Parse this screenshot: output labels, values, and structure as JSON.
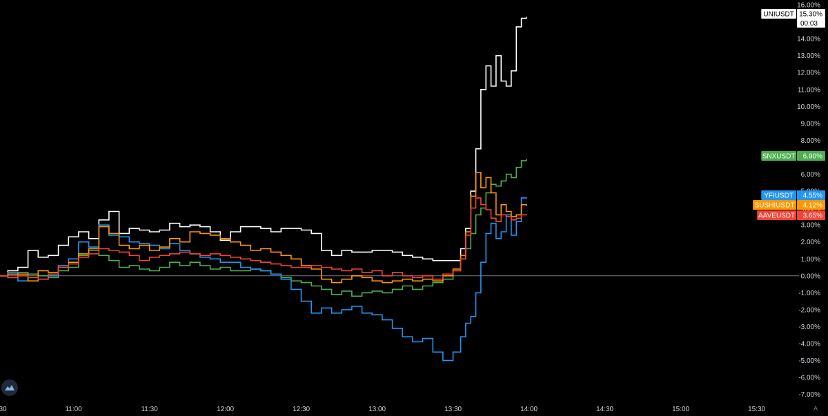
{
  "chart_data": {
    "type": "line",
    "x_ticks": [
      "30",
      "11:00",
      "11:30",
      "12:00",
      "12:30",
      "13:00",
      "13:30",
      "14:00",
      "14:30",
      "15:00",
      "15:30"
    ],
    "y_ticks": [
      "16.00%",
      "15.00%",
      "14.00%",
      "13.00%",
      "12.00%",
      "11.00%",
      "10.00%",
      "9.00%",
      "8.00%",
      "7.00%",
      "6.00%",
      "5.00%",
      "4.00%",
      "3.00%",
      "2.00%",
      "1.00%",
      "0.00%",
      "-1.00%",
      "-2.00%",
      "-3.00%",
      "-4.00%",
      "-5.00%",
      "-6.00%",
      "-7.00%"
    ],
    "ylim": [
      -7.3,
      16
    ],
    "xlim": [
      "10:30",
      "15:50"
    ],
    "grid": false,
    "baseline": 0,
    "countdown": "00:03",
    "series": [
      {
        "name": "UNIUSDT",
        "color": "#ffffff",
        "last_label": "15.30%",
        "last": 15.3,
        "x": [
          "10:30",
          "10:34",
          "10:38",
          "10:42",
          "10:46",
          "10:50",
          "10:54",
          "10:58",
          "11:02",
          "11:06",
          "11:10",
          "11:14",
          "11:18",
          "11:22",
          "11:26",
          "11:30",
          "11:34",
          "11:38",
          "11:42",
          "11:46",
          "11:50",
          "11:54",
          "11:58",
          "12:02",
          "12:06",
          "12:10",
          "12:14",
          "12:18",
          "12:22",
          "12:26",
          "12:30",
          "12:34",
          "12:38",
          "12:42",
          "12:46",
          "12:50",
          "12:54",
          "12:58",
          "13:02",
          "13:06",
          "13:10",
          "13:14",
          "13:18",
          "13:22",
          "13:26",
          "13:30",
          "13:33",
          "13:35",
          "13:37",
          "13:39",
          "13:41",
          "13:43",
          "13:45",
          "13:47",
          "13:49",
          "13:51",
          "13:53",
          "13:55",
          "13:57",
          "13:59"
        ],
        "values": [
          0,
          0.3,
          0.5,
          1.5,
          1.1,
          1.2,
          1.8,
          2.3,
          2.6,
          2.2,
          3.3,
          3.8,
          2.5,
          2.8,
          2.7,
          2.6,
          2.7,
          3.1,
          2.9,
          3.0,
          2.9,
          2.6,
          2.1,
          2.6,
          2.9,
          2.9,
          2.8,
          2.6,
          2.8,
          2.8,
          2.7,
          2.5,
          1.5,
          1.2,
          1.5,
          1.4,
          1.4,
          1.5,
          1.5,
          1.4,
          1.2,
          1.1,
          1.0,
          0.9,
          0.9,
          0.9,
          1.6,
          2.8,
          5.0,
          7.5,
          11.0,
          12.4,
          11.2,
          13.0,
          11.5,
          11.2,
          12.1,
          14.7,
          15.2,
          15.3
        ]
      },
      {
        "name": "SNXUSDT",
        "color": "#4caf50",
        "last_label": "6.90%",
        "last": 6.9,
        "x": [
          "10:30",
          "10:34",
          "10:38",
          "10:42",
          "10:46",
          "10:50",
          "10:54",
          "10:58",
          "11:02",
          "11:06",
          "11:10",
          "11:14",
          "11:18",
          "11:22",
          "11:26",
          "11:30",
          "11:34",
          "11:38",
          "11:42",
          "11:46",
          "11:50",
          "11:54",
          "11:58",
          "12:02",
          "12:06",
          "12:10",
          "12:14",
          "12:18",
          "12:22",
          "12:26",
          "12:30",
          "12:34",
          "12:38",
          "12:42",
          "12:46",
          "12:50",
          "12:54",
          "12:58",
          "13:02",
          "13:06",
          "13:10",
          "13:14",
          "13:18",
          "13:22",
          "13:26",
          "13:30",
          "13:33",
          "13:35",
          "13:37",
          "13:39",
          "13:41",
          "13:43",
          "13:45",
          "13:47",
          "13:49",
          "13:51",
          "13:53",
          "13:55",
          "13:57",
          "13:59"
        ],
        "values": [
          0,
          -0.1,
          0.2,
          0.1,
          0.0,
          -0.1,
          0.3,
          0.5,
          1.2,
          1.5,
          1.2,
          0.9,
          0.5,
          0.6,
          0.4,
          0.3,
          0.5,
          0.8,
          0.6,
          0.8,
          0.6,
          0.4,
          0.5,
          0.3,
          0.3,
          0.4,
          0.3,
          0.1,
          -0.1,
          -0.3,
          -0.4,
          -0.6,
          -0.8,
          -1.1,
          -0.9,
          -1.2,
          -1.0,
          -0.9,
          -1.0,
          -0.8,
          -0.6,
          -0.8,
          -0.6,
          -0.4,
          -0.2,
          0.3,
          1.0,
          1.6,
          2.5,
          3.6,
          4.0,
          4.9,
          5.4,
          5.3,
          5.6,
          6.0,
          5.8,
          6.4,
          6.8,
          6.9
        ]
      },
      {
        "name": "YFIUSDT",
        "color": "#2196f3",
        "last_label": "4.55%",
        "last": 4.55,
        "x": [
          "10:30",
          "10:34",
          "10:38",
          "10:42",
          "10:46",
          "10:50",
          "10:54",
          "10:58",
          "11:02",
          "11:06",
          "11:10",
          "11:14",
          "11:18",
          "11:22",
          "11:26",
          "11:30",
          "11:34",
          "11:38",
          "11:42",
          "11:46",
          "11:50",
          "11:54",
          "11:58",
          "12:02",
          "12:06",
          "12:10",
          "12:14",
          "12:18",
          "12:22",
          "12:26",
          "12:30",
          "12:34",
          "12:38",
          "12:42",
          "12:46",
          "12:50",
          "12:54",
          "12:58",
          "13:02",
          "13:06",
          "13:10",
          "13:14",
          "13:18",
          "13:22",
          "13:26",
          "13:30",
          "13:33",
          "13:35",
          "13:37",
          "13:39",
          "13:41",
          "13:43",
          "13:45",
          "13:47",
          "13:49",
          "13:51",
          "13:53",
          "13:55",
          "13:57",
          "13:59"
        ],
        "values": [
          0,
          0.2,
          -0.3,
          -0.1,
          -0.2,
          0.0,
          0.6,
          1.0,
          2.0,
          1.7,
          3.0,
          2.4,
          2.3,
          2.0,
          1.9,
          1.8,
          1.6,
          1.9,
          1.5,
          1.3,
          1.1,
          1.0,
          0.8,
          0.8,
          0.5,
          0.4,
          0.3,
          0.1,
          -0.2,
          -0.8,
          -1.5,
          -2.2,
          -1.9,
          -2.2,
          -2.0,
          -1.8,
          -2.2,
          -2.3,
          -2.6,
          -3.1,
          -3.6,
          -3.9,
          -3.7,
          -4.5,
          -5.0,
          -4.5,
          -3.6,
          -2.8,
          -2.4,
          -1.0,
          0.8,
          2.5,
          3.1,
          2.2,
          2.6,
          3.6,
          2.4,
          3.2,
          4.6,
          4.55
        ]
      },
      {
        "name": "SUSHIUSDT",
        "color": "#ff9800",
        "last_label": "4.12%",
        "last": 4.12,
        "x": [
          "10:30",
          "10:34",
          "10:38",
          "10:42",
          "10:46",
          "10:50",
          "10:54",
          "10:58",
          "11:02",
          "11:06",
          "11:10",
          "11:14",
          "11:18",
          "11:22",
          "11:26",
          "11:30",
          "11:34",
          "11:38",
          "11:42",
          "11:46",
          "11:50",
          "11:54",
          "11:58",
          "12:02",
          "12:06",
          "12:10",
          "12:14",
          "12:18",
          "12:22",
          "12:26",
          "12:30",
          "12:34",
          "12:38",
          "12:42",
          "12:46",
          "12:50",
          "12:54",
          "12:58",
          "13:02",
          "13:06",
          "13:10",
          "13:14",
          "13:18",
          "13:22",
          "13:26",
          "13:30",
          "13:33",
          "13:35",
          "13:37",
          "13:39",
          "13:41",
          "13:43",
          "13:45",
          "13:47",
          "13:49",
          "13:51",
          "13:53",
          "13:55",
          "13:57",
          "13:59"
        ],
        "values": [
          0,
          0.1,
          0.1,
          -0.3,
          0.3,
          0.2,
          0.5,
          0.8,
          1.3,
          1.6,
          2.9,
          2.5,
          1.8,
          1.6,
          1.8,
          1.5,
          1.7,
          2.2,
          2.0,
          2.6,
          2.5,
          2.4,
          2.2,
          2.0,
          1.8,
          1.5,
          1.6,
          1.4,
          1.2,
          1.0,
          0.6,
          0.4,
          -0.2,
          -0.4,
          -0.2,
          0.0,
          -0.1,
          -0.3,
          -0.4,
          -0.3,
          -0.2,
          -0.3,
          -0.2,
          -0.3,
          0.0,
          0.4,
          1.2,
          2.6,
          4.7,
          6.1,
          5.2,
          5.8,
          4.9,
          3.6,
          4.2,
          3.8,
          3.5,
          3.6,
          4.2,
          4.12
        ]
      },
      {
        "name": "AAVEUSDT",
        "color": "#f44336",
        "last_label": "3.65%",
        "last": 3.65,
        "x": [
          "10:30",
          "10:34",
          "10:38",
          "10:42",
          "10:46",
          "10:50",
          "10:54",
          "10:58",
          "11:02",
          "11:06",
          "11:10",
          "11:14",
          "11:18",
          "11:22",
          "11:26",
          "11:30",
          "11:34",
          "11:38",
          "11:42",
          "11:46",
          "11:50",
          "11:54",
          "11:58",
          "12:02",
          "12:06",
          "12:10",
          "12:14",
          "12:18",
          "12:22",
          "12:26",
          "12:30",
          "12:34",
          "12:38",
          "12:42",
          "12:46",
          "12:50",
          "12:54",
          "12:58",
          "13:02",
          "13:06",
          "13:10",
          "13:14",
          "13:18",
          "13:22",
          "13:26",
          "13:30",
          "13:33",
          "13:35",
          "13:37",
          "13:39",
          "13:41",
          "13:43",
          "13:45",
          "13:47",
          "13:49",
          "13:51",
          "13:53",
          "13:55",
          "13:57",
          "13:59"
        ],
        "values": [
          0,
          -0.1,
          0.0,
          -0.1,
          -0.2,
          0.1,
          0.5,
          0.7,
          1.1,
          1.3,
          1.6,
          1.5,
          1.4,
          1.2,
          0.9,
          1.1,
          1.2,
          1.3,
          1.4,
          1.3,
          1.2,
          1.3,
          1.2,
          1.1,
          1.0,
          0.9,
          0.8,
          0.7,
          0.6,
          0.5,
          0.5,
          0.6,
          0.5,
          0.4,
          0.3,
          0.4,
          0.2,
          0.3,
          0.0,
          0.2,
          0.0,
          -0.1,
          0.0,
          -0.2,
          0.1,
          0.3,
          1.0,
          2.4,
          4.0,
          4.6,
          4.2,
          3.9,
          3.4,
          3.2,
          3.6,
          3.5,
          3.3,
          3.4,
          3.6,
          3.65
        ]
      }
    ]
  }
}
